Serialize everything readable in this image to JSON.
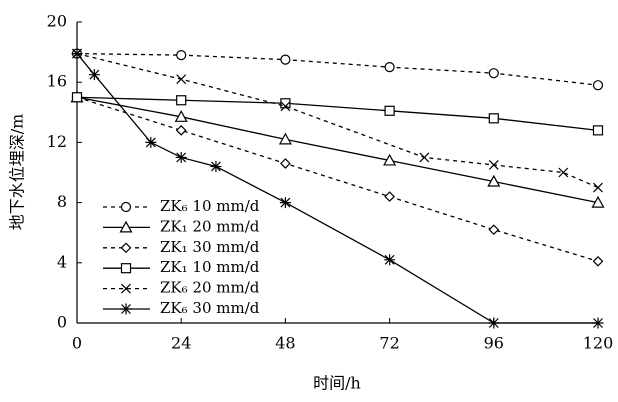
{
  "chart_data": {
    "type": "line",
    "x_label": "时间/h",
    "y_label": "地下水位埋深/m",
    "xlim": [
      0,
      120
    ],
    "xticks": [
      0,
      24,
      48,
      72,
      96,
      120
    ],
    "ylim": [
      0,
      20
    ],
    "yticks": [
      0,
      4,
      8,
      12,
      16,
      20
    ],
    "grid": false,
    "legend": "left",
    "series": [
      {
        "name": "ZK₆ 10 mm/d",
        "color": "#000000",
        "dash": "dashed",
        "marker": "circle",
        "x": [
          0,
          24,
          48,
          72,
          96,
          120
        ],
        "values": [
          17.9,
          17.8,
          17.5,
          17.0,
          16.6,
          15.8
        ]
      },
      {
        "name": "ZK₁ 20 mm/d",
        "color": "#000000",
        "dash": "solid",
        "marker": "triangle",
        "x": [
          0,
          24,
          48,
          72,
          96,
          120
        ],
        "values": [
          15.0,
          13.7,
          12.2,
          10.8,
          9.4,
          8.0
        ]
      },
      {
        "name": "ZK₁ 30 mm/d",
        "color": "#000000",
        "dash": "dashed",
        "marker": "diamond",
        "x": [
          0,
          24,
          48,
          72,
          96,
          120
        ],
        "values": [
          15.0,
          12.8,
          10.6,
          8.4,
          6.2,
          4.1
        ]
      },
      {
        "name": "ZK₁ 10 mm/d",
        "color": "#000000",
        "dash": "solid",
        "marker": "square",
        "x": [
          0,
          24,
          48,
          72,
          96,
          120
        ],
        "values": [
          15.0,
          14.8,
          14.6,
          14.1,
          13.6,
          12.8
        ]
      },
      {
        "name": "ZK₆ 20 mm/d",
        "color": "#000000",
        "dash": "dashed",
        "marker": "x",
        "x": [
          0,
          24,
          48,
          80,
          96,
          112,
          120
        ],
        "values": [
          17.9,
          16.2,
          14.4,
          11.0,
          10.5,
          10.0,
          9.0
        ]
      },
      {
        "name": "ZK₆ 30 mm/d",
        "color": "#000000",
        "dash": "solid",
        "marker": "asterisk",
        "x": [
          0,
          4,
          17,
          24,
          32,
          48,
          72,
          96,
          120
        ],
        "values": [
          17.9,
          16.5,
          12.0,
          11.0,
          10.4,
          8.0,
          4.2,
          0,
          0
        ]
      }
    ]
  }
}
